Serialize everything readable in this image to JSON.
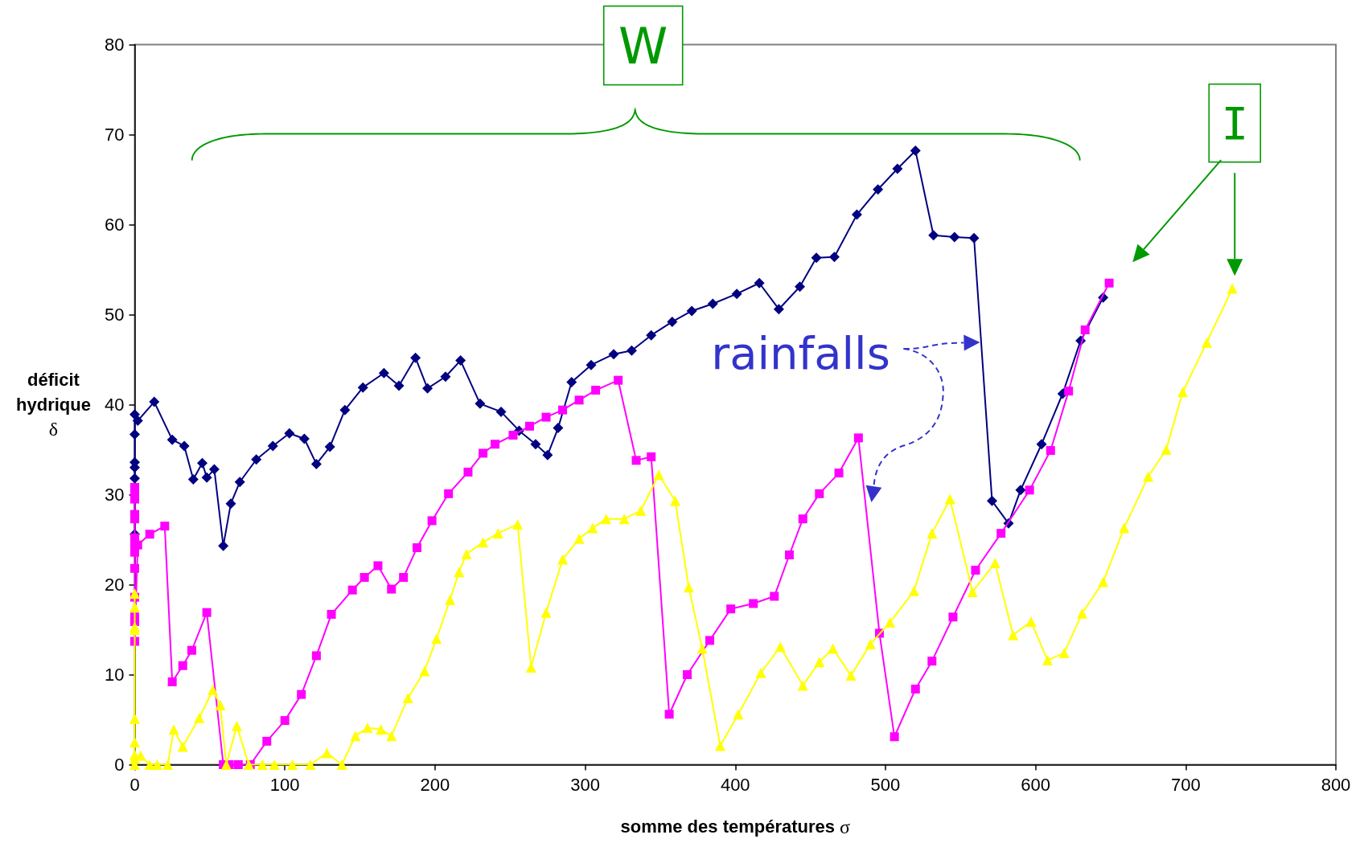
{
  "chart_data": {
    "type": "line",
    "xlabel": "somme des températures σ",
    "ylabel": "déficit hydrique δ",
    "xlim": [
      0,
      800
    ],
    "xticks": [
      0,
      100,
      200,
      300,
      400,
      500,
      600,
      700,
      800
    ],
    "ylim": [
      0,
      80
    ],
    "yticks": [
      0,
      10,
      20,
      30,
      40,
      50,
      60,
      70,
      80
    ],
    "series": [
      {
        "color": "#000080",
        "marker": "diamond",
        "x": [
          0,
          0,
          0,
          0,
          0,
          0,
          2,
          13,
          25,
          33,
          39,
          45,
          48,
          53,
          59,
          64,
          70,
          81,
          92,
          103,
          113,
          121,
          130,
          140,
          152,
          166,
          176,
          187,
          195,
          207,
          217,
          230,
          244,
          256,
          267,
          275,
          282,
          291,
          304,
          319,
          331,
          344,
          358,
          371,
          385,
          401,
          416,
          429,
          443,
          454,
          466,
          481,
          495,
          508,
          520,
          532,
          546,
          559,
          571,
          582,
          590,
          604,
          618,
          630,
          645
        ],
        "values": [
          25.6,
          31.8,
          33.0,
          33.6,
          36.7,
          38.9,
          38.2,
          40.3,
          36.1,
          35.4,
          31.7,
          33.5,
          31.9,
          32.8,
          24.3,
          29.0,
          31.4,
          33.9,
          35.4,
          36.8,
          36.2,
          33.4,
          35.3,
          39.4,
          41.9,
          43.5,
          42.1,
          45.2,
          41.8,
          43.1,
          44.9,
          40.1,
          39.2,
          37.1,
          35.6,
          34.4,
          37.4,
          42.5,
          44.4,
          45.6,
          46.0,
          47.7,
          49.2,
          50.4,
          51.2,
          52.3,
          53.5,
          50.6,
          53.1,
          56.3,
          56.4,
          61.1,
          63.9,
          66.2,
          68.2,
          58.8,
          58.6,
          58.5,
          29.3,
          26.8,
          30.5,
          35.6,
          41.2,
          47.1,
          51.9
        ]
      },
      {
        "color": "#ff00ff",
        "marker": "square",
        "x": [
          0,
          0,
          0,
          0,
          0,
          0,
          0,
          0,
          0,
          0,
          0,
          0,
          0,
          2,
          10,
          20,
          25,
          32,
          38,
          48,
          59,
          63,
          69,
          77,
          88,
          100,
          111,
          121,
          131,
          145,
          153,
          162,
          171,
          179,
          188,
          198,
          209,
          222,
          232,
          240,
          252,
          263,
          274,
          285,
          296,
          307,
          322,
          334,
          344,
          356,
          368,
          383,
          397,
          412,
          426,
          436,
          445,
          456,
          469,
          482,
          496,
          506,
          520,
          531,
          545,
          560,
          577,
          596,
          610,
          622,
          633,
          649
        ],
        "values": [
          30.8,
          30.2,
          29.5,
          27.8,
          27.3,
          25.2,
          24.5,
          23.6,
          21.8,
          18.6,
          16.4,
          15.9,
          13.7,
          24.4,
          25.6,
          26.5,
          9.2,
          11.0,
          12.7,
          16.9,
          0,
          0,
          0,
          0,
          2.6,
          4.9,
          7.8,
          12.1,
          16.7,
          19.4,
          20.8,
          22.1,
          19.5,
          20.8,
          24.1,
          27.1,
          30.1,
          32.5,
          34.6,
          35.6,
          36.6,
          37.6,
          38.6,
          39.4,
          40.5,
          41.6,
          42.7,
          33.8,
          34.2,
          5.6,
          10.0,
          13.8,
          17.3,
          17.9,
          18.7,
          23.3,
          27.3,
          30.1,
          32.4,
          36.3,
          14.6,
          3.1,
          8.4,
          11.5,
          16.4,
          21.6,
          25.7,
          30.5,
          34.9,
          41.5,
          48.3,
          53.5
        ]
      },
      {
        "color": "#ffff00",
        "marker": "triangle",
        "x": [
          0,
          0,
          0,
          0,
          0,
          0,
          0,
          0,
          0,
          4,
          10,
          15,
          22,
          26,
          32,
          43,
          52,
          57,
          61,
          68,
          76,
          85,
          93,
          105,
          117,
          128,
          138,
          147,
          155,
          164,
          171,
          182,
          193,
          201,
          210,
          216,
          221,
          232,
          242,
          255,
          264,
          274,
          285,
          296,
          305,
          314,
          326,
          337,
          349,
          360,
          369,
          378,
          390,
          402,
          417,
          430,
          445,
          456,
          465,
          477,
          490,
          503,
          519,
          531,
          543,
          558,
          573,
          585,
          597,
          608,
          619,
          631,
          645,
          659,
          675,
          687,
          698,
          714,
          731
        ],
        "values": [
          19.0,
          17.5,
          15.3,
          15.0,
          5.1,
          2.5,
          1.1,
          0.7,
          0,
          1.0,
          0,
          0,
          0,
          3.9,
          2.0,
          5.2,
          8.3,
          6.6,
          0,
          4.3,
          0,
          0,
          0,
          0,
          0,
          1.3,
          0,
          3.2,
          4.1,
          3.9,
          3.2,
          7.4,
          10.4,
          14.0,
          18.3,
          21.4,
          23.4,
          24.7,
          25.7,
          26.7,
          10.8,
          16.9,
          22.8,
          25.1,
          26.3,
          27.3,
          27.3,
          28.2,
          32.2,
          29.3,
          19.7,
          12.9,
          2.1,
          5.6,
          10.2,
          13.1,
          8.8,
          11.4,
          12.9,
          9.9,
          13.4,
          15.8,
          19.3,
          25.7,
          29.5,
          19.2,
          22.4,
          14.4,
          15.9,
          11.6,
          12.4,
          16.8,
          20.3,
          26.3,
          32.0,
          35.0,
          41.4,
          46.9,
          52.9
        ]
      }
    ],
    "annotations": [
      "W",
      "I",
      "rainfalls"
    ]
  }
}
